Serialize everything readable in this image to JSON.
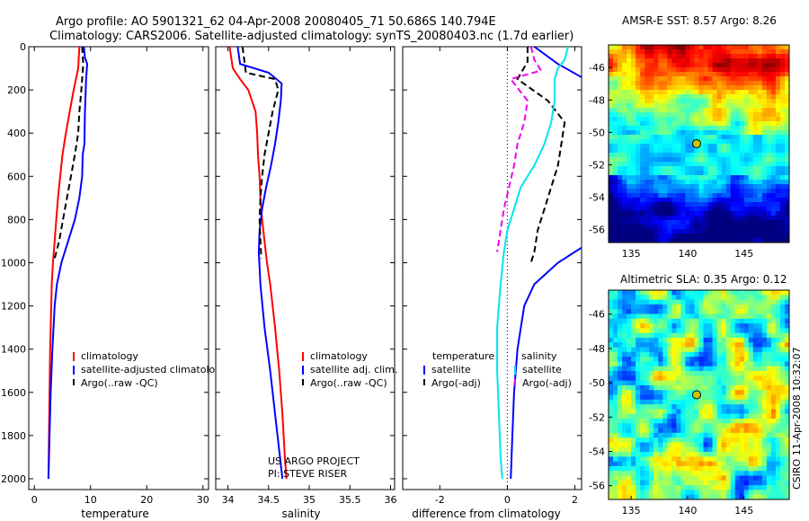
{
  "figure": {
    "title_line1": "Argo profile: AO 5901321_62 04-Apr-2008 20080405_71 50.686S 140.794E",
    "title_line2": "Climatology: CARS2006. Satellite-adjusted climatology: synTS_20080403.nc (1.7d earlier)",
    "credit": "CSIRO 11-Apr-2008 10:32:07",
    "project_line1": "US ARGO PROJECT",
    "project_line2": "PI: STEVE RISER"
  },
  "colors": {
    "climatology": "#ff0000",
    "satellite": "#0000ff",
    "argo": "#000000",
    "diff_satellite_salinity": "#00e5ee",
    "diff_argo_salinity": "#ee00ee",
    "marker": "#c8c800"
  },
  "chart_data": [
    {
      "type": "line",
      "panel": "temperature",
      "xlabel": "temperature",
      "ylabel": "",
      "xlim": [
        -1,
        31
      ],
      "ylim": [
        2050,
        0
      ],
      "xticks": [
        "0",
        "10",
        "20",
        "30"
      ],
      "yticks": [
        "0",
        "200",
        "400",
        "600",
        "800",
        "1000",
        "1200",
        "1400",
        "1600",
        "1800",
        "2000"
      ],
      "legend": {
        "placement": "lower-middle",
        "entries": [
          "climatology",
          "satellite-adjusted climatology",
          "Argo(..raw -QC)"
        ]
      },
      "series": [
        {
          "name": "climatology",
          "depth": [
            0,
            100,
            200,
            300,
            400,
            500,
            600,
            700,
            800,
            900,
            1000,
            1100,
            1200,
            1400,
            1600,
            1800,
            2000
          ],
          "values": [
            8.0,
            7.8,
            7.0,
            6.3,
            5.6,
            5.0,
            4.6,
            4.2,
            3.9,
            3.6,
            3.3,
            3.1,
            3.0,
            2.8,
            2.7,
            2.6,
            2.5
          ]
        },
        {
          "name": "satellite-adjusted climatology",
          "depth": [
            0,
            50,
            80,
            150,
            300,
            450,
            500,
            600,
            700,
            800,
            900,
            1000,
            1100,
            1200,
            1400,
            1600,
            1800,
            2000
          ],
          "values": [
            8.8,
            9.0,
            9.4,
            9.2,
            9.0,
            8.9,
            8.6,
            8.5,
            8.0,
            7.2,
            6.0,
            4.8,
            4.0,
            3.6,
            3.2,
            2.9,
            2.7,
            2.5
          ]
        },
        {
          "name": "Argo(..raw -QC)",
          "depth": [
            0,
            80,
            150,
            220,
            300,
            400,
            500,
            600,
            700,
            800,
            900,
            980
          ],
          "values": [
            8.5,
            8.7,
            8.5,
            8.3,
            8.0,
            7.8,
            7.2,
            6.5,
            5.8,
            5.1,
            4.4,
            3.6
          ]
        }
      ]
    },
    {
      "type": "line",
      "panel": "salinity",
      "xlabel": "salinity",
      "ylabel": "",
      "xlim": [
        33.85,
        36.05
      ],
      "ylim": [
        2050,
        0
      ],
      "xticks": [
        "34",
        "34.5",
        "35",
        "35.5",
        "36"
      ],
      "legend": {
        "placement": "lower-middle",
        "entries": [
          "climatology",
          "satellite adj. clim.",
          "Argo(..raw -QC)"
        ]
      },
      "series": [
        {
          "name": "climatology",
          "depth": [
            0,
            100,
            150,
            200,
            300,
            400,
            500,
            600,
            700,
            800,
            900,
            1000,
            1100,
            1300,
            1500,
            1700,
            1900,
            2000
          ],
          "values": [
            34.02,
            34.06,
            34.15,
            34.25,
            34.34,
            34.36,
            34.37,
            34.39,
            34.4,
            34.42,
            34.45,
            34.48,
            34.52,
            34.58,
            34.63,
            34.67,
            34.7,
            34.72
          ]
        },
        {
          "name": "satellite adj. clim.",
          "depth": [
            0,
            80,
            120,
            170,
            250,
            350,
            450,
            550,
            650,
            750,
            850,
            950,
            1100,
            1300,
            1500,
            1700,
            1900,
            2000
          ],
          "values": [
            34.12,
            34.15,
            34.5,
            34.66,
            34.65,
            34.62,
            34.58,
            34.53,
            34.47,
            34.42,
            34.39,
            34.38,
            34.4,
            34.45,
            34.52,
            34.58,
            34.64,
            34.67
          ]
        },
        {
          "name": "Argo(..raw -QC)",
          "depth": [
            0,
            60,
            120,
            150,
            200,
            300,
            400,
            500,
            600,
            700,
            800,
            900,
            980
          ],
          "values": [
            34.18,
            34.2,
            34.22,
            34.58,
            34.62,
            34.55,
            34.5,
            34.45,
            34.42,
            34.4,
            34.39,
            34.4,
            34.41
          ]
        }
      ]
    },
    {
      "type": "line",
      "panel": "difference",
      "xlabel": "difference from climatology",
      "ylabel": "",
      "xlim": [
        -3.1,
        2.2
      ],
      "ylim": [
        2050,
        0
      ],
      "xticks": [
        "-2",
        "0",
        "2"
      ],
      "legend": {
        "placement": "lower-middle",
        "left_header": "temperature",
        "right_header": "salinity",
        "left_entries": [
          "satellite",
          "Argo(-adj)"
        ],
        "right_entries": [
          "satellite",
          "Argo(-adj)"
        ]
      },
      "series": [
        {
          "name": "temperature satellite",
          "depth": [
            0,
            80,
            150,
            200,
            300,
            400,
            500,
            600,
            700,
            800,
            900,
            1000,
            1100,
            1200,
            1400,
            1600,
            1800,
            2000
          ],
          "values": [
            0.8,
            1.5,
            2.3,
            2.6,
            2.9,
            3.4,
            3.8,
            3.9,
            3.6,
            3.3,
            2.5,
            1.5,
            0.8,
            0.5,
            0.3,
            0.2,
            0.15,
            0.1
          ]
        },
        {
          "name": "temperature Argo(-adj)",
          "depth": [
            0,
            70,
            150,
            250,
            350,
            450,
            550,
            650,
            750,
            850,
            950,
            1000
          ],
          "values": [
            0.6,
            0.6,
            0.3,
            1.2,
            1.7,
            1.6,
            1.5,
            1.3,
            1.1,
            0.9,
            0.8,
            0.7
          ]
        },
        {
          "name": "salinity satellite",
          "depth": [
            0,
            60,
            100,
            150,
            250,
            350,
            450,
            550,
            650,
            750,
            850,
            950,
            1100,
            1300,
            1500,
            1700,
            1900,
            2000
          ],
          "values": [
            1.8,
            1.7,
            1.5,
            1.4,
            1.4,
            1.3,
            1.1,
            0.8,
            0.4,
            0.2,
            0.0,
            -0.1,
            -0.2,
            -0.3,
            -0.3,
            -0.25,
            -0.2,
            -0.15
          ]
        },
        {
          "name": "salinity Argo(-adj)",
          "depth": [
            0,
            60,
            110,
            150,
            250,
            350,
            450,
            550,
            650,
            750,
            850,
            950
          ],
          "values": [
            0.7,
            0.8,
            1.0,
            0.1,
            0.6,
            0.5,
            0.3,
            0.2,
            0.05,
            -0.1,
            -0.2,
            -0.3
          ]
        }
      ]
    },
    {
      "type": "heatmap",
      "panel": "sst_map",
      "title": "AMSR-E SST: 8.57 Argo: 8.26",
      "xticks": [
        "135",
        "140",
        "145"
      ],
      "yticks": [
        "-46",
        "-48",
        "-50",
        "-52",
        "-54",
        "-56"
      ],
      "xlim": [
        133,
        149
      ],
      "ylim": [
        -56.8,
        -44.6
      ],
      "marker": {
        "lon": 140.8,
        "lat": -50.7
      }
    },
    {
      "type": "heatmap",
      "panel": "sla_map",
      "title": "Altimetric SLA: 0.35 Argo: 0.12",
      "xticks": [
        "135",
        "140",
        "145"
      ],
      "yticks": [
        "-46",
        "-48",
        "-50",
        "-52",
        "-54",
        "-56"
      ],
      "xlim": [
        133,
        149
      ],
      "ylim": [
        -56.8,
        -44.6
      ],
      "marker": {
        "lon": 140.8,
        "lat": -50.7
      }
    }
  ]
}
